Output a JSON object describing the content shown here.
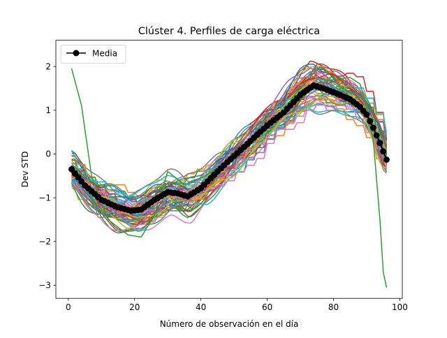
{
  "chart_data": {
    "type": "line",
    "title": "Clúster 4. Perfiles de carga eléctrica",
    "xlabel": "Número de observación en el día",
    "ylabel": "Dev STD",
    "xlim": [
      -3.75,
      100.75
    ],
    "ylim": [
      -3.3,
      2.6
    ],
    "xticks": [
      0,
      20,
      40,
      60,
      80,
      100
    ],
    "yticks": [
      -3,
      -2,
      -1,
      0,
      1,
      2
    ],
    "xtick_labels": [
      "0",
      "20",
      "40",
      "60",
      "80",
      "100"
    ],
    "ytick_labels": [
      "−3",
      "−2",
      "−1",
      "0",
      "1",
      "2"
    ],
    "grid": false,
    "legend_position": "top-left",
    "legend": [
      "Media"
    ],
    "mean_series": {
      "name": "Media",
      "color": "#000000",
      "marker": "circle",
      "x_key": [
        1,
        5,
        10,
        15,
        19,
        22,
        26,
        30,
        33,
        36,
        40,
        45,
        50,
        55,
        60,
        65,
        70,
        74,
        78,
        82,
        85,
        88,
        90,
        92,
        94,
        96
      ],
      "y_key": [
        -0.35,
        -0.72,
        -1.05,
        -1.22,
        -1.3,
        -1.27,
        -1.05,
        -0.87,
        -0.9,
        -0.97,
        -0.78,
        -0.4,
        -0.05,
        0.3,
        0.65,
        0.95,
        1.35,
        1.57,
        1.47,
        1.35,
        1.25,
        1.08,
        0.9,
        0.6,
        0.25,
        -0.13
      ]
    },
    "cluster_profiles": {
      "count": 60,
      "x_range": [
        1,
        96
      ],
      "palette": [
        "#1f77b4",
        "#ff7f0e",
        "#2ca02c",
        "#d62728",
        "#9467bd",
        "#8c564b",
        "#e377c2",
        "#7f7f7f",
        "#bcbd22",
        "#17becf"
      ],
      "outlier_profile": {
        "color": "#2ca02c",
        "x_key": [
          1,
          4,
          7,
          12,
          18,
          22,
          26,
          30,
          35,
          40,
          50,
          60,
          70,
          75,
          80,
          85,
          88,
          90,
          92,
          94,
          95,
          96
        ],
        "y_key": [
          1.95,
          1.1,
          -0.5,
          -1.5,
          -1.85,
          -1.9,
          -1.4,
          -0.4,
          -0.7,
          -0.55,
          -0.1,
          0.6,
          1.25,
          1.6,
          1.7,
          1.75,
          1.6,
          1.1,
          0.3,
          -1.5,
          -2.7,
          -3.05
        ]
      }
    }
  }
}
